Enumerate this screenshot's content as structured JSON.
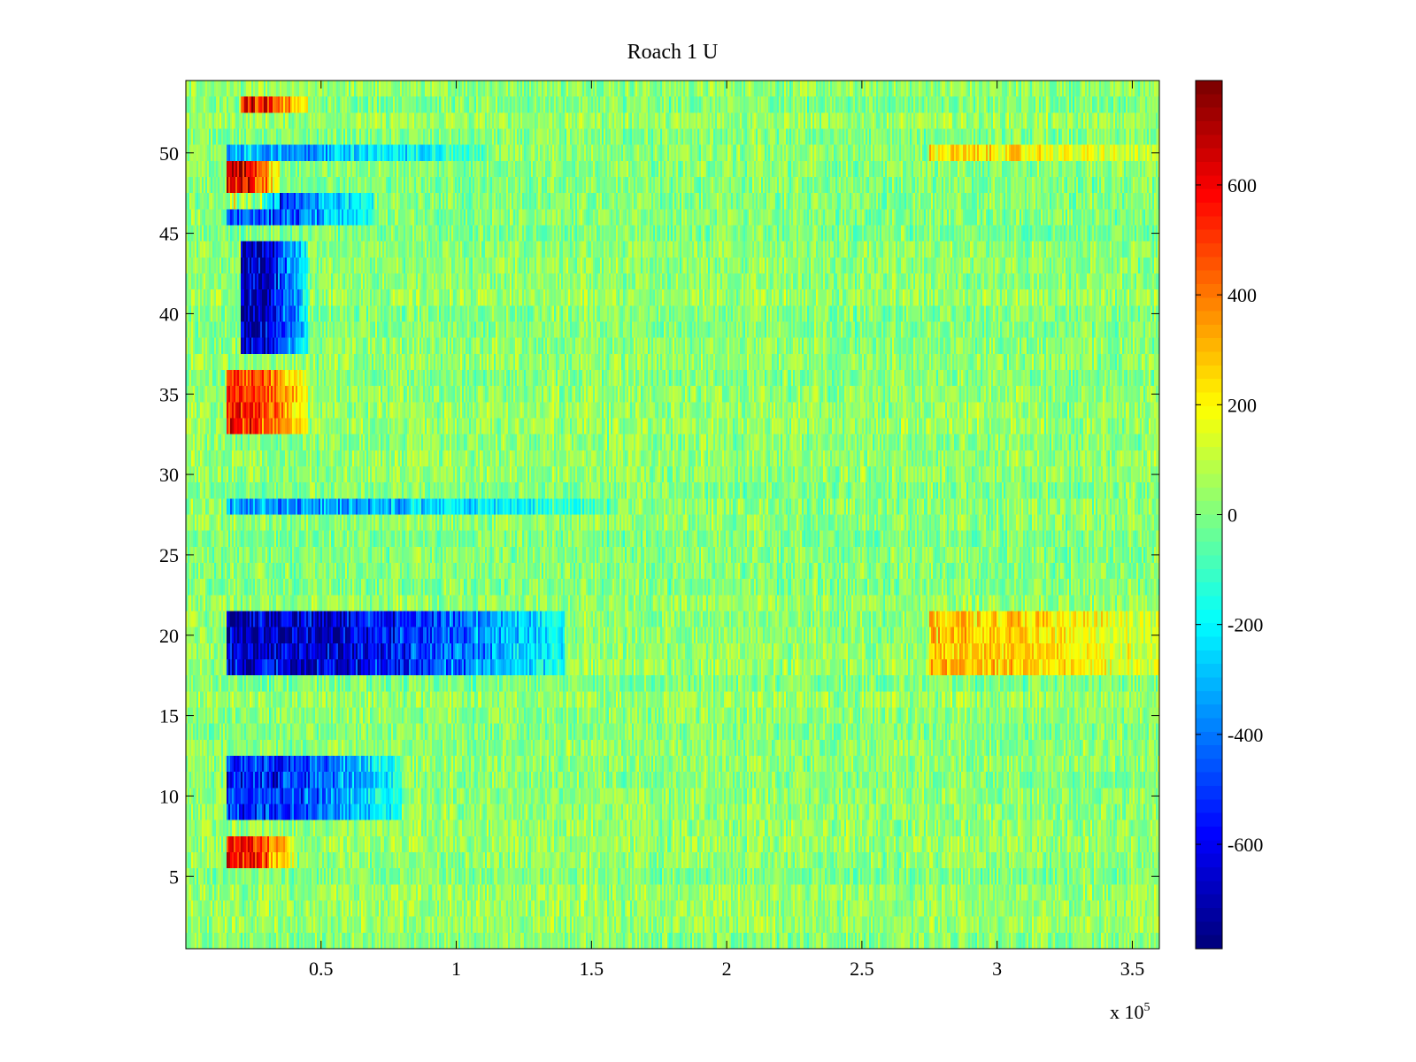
{
  "chart_data": {
    "type": "heatmap",
    "title": "Roach 1 U",
    "xlabel": "",
    "ylabel": "",
    "x_multiplier_label": "x 10",
    "x_multiplier_exponent": "5",
    "xlim": [
      0,
      3.6
    ],
    "ylim": [
      0.5,
      54.5
    ],
    "rows": 54,
    "colormap": "jet",
    "clim": [
      -790,
      790
    ],
    "xticks": [
      0.5,
      1,
      1.5,
      2,
      2.5,
      3,
      3.5
    ],
    "xtick_labels": [
      "0.5",
      "1",
      "1.5",
      "2",
      "2.5",
      "3",
      "3.5"
    ],
    "yticks": [
      5,
      10,
      15,
      20,
      25,
      30,
      35,
      40,
      45,
      50
    ],
    "ytick_labels": [
      "5",
      "10",
      "15",
      "20",
      "25",
      "30",
      "35",
      "40",
      "45",
      "50"
    ],
    "colorbar_ticks": [
      600,
      400,
      200,
      0,
      -200,
      -400,
      -600
    ],
    "colorbar_tick_labels": [
      "600",
      "400",
      "200",
      "0",
      "-200",
      "-400",
      "-600"
    ],
    "features": [
      {
        "rows": [
          18,
          21
        ],
        "x_range": [
          0.15,
          1.4
        ],
        "value": -700,
        "note": "strong negative band"
      },
      {
        "rows": [
          9,
          12
        ],
        "x_range": [
          0.15,
          0.8
        ],
        "value": -550
      },
      {
        "rows": [
          38,
          44
        ],
        "x_range": [
          0.2,
          0.45
        ],
        "value": -700
      },
      {
        "rows": [
          46,
          47
        ],
        "x_range": [
          0.15,
          0.7
        ],
        "value": -500
      },
      {
        "rows": [
          50,
          50
        ],
        "x_range": [
          0.15,
          1.1
        ],
        "value": -350
      },
      {
        "rows": [
          28,
          28
        ],
        "x_range": [
          0.15,
          1.6
        ],
        "value": -350
      },
      {
        "rows": [
          6,
          7
        ],
        "x_range": [
          0.15,
          0.4
        ],
        "value": 550
      },
      {
        "rows": [
          33,
          36
        ],
        "x_range": [
          0.15,
          0.45
        ],
        "value": 500
      },
      {
        "rows": [
          47,
          49
        ],
        "x_range": [
          0.15,
          0.35
        ],
        "value": 600
      },
      {
        "rows": [
          53,
          53
        ],
        "x_range": [
          0.2,
          0.45
        ],
        "value": 600
      },
      {
        "rows": [
          18,
          21
        ],
        "x_range": [
          2.75,
          3.6
        ],
        "value": 250
      },
      {
        "rows": [
          50,
          50
        ],
        "x_range": [
          2.75,
          3.6
        ],
        "value": 200
      }
    ]
  }
}
